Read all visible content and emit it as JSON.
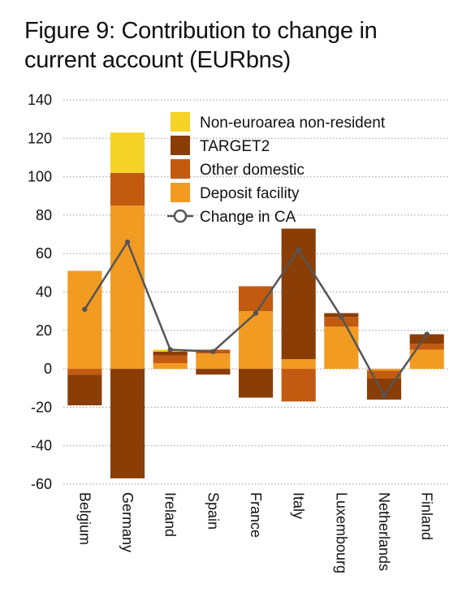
{
  "title": "Figure 9: Contribution to change in current account (EURbns)",
  "colors": {
    "non_euroarea": "#f5d327",
    "target2": "#8b3d06",
    "other_domestic": "#c25a10",
    "deposit_facility": "#f29b22",
    "change_ca": "#555555",
    "grid": "#9a9a9a"
  },
  "chart_data": {
    "type": "bar",
    "stacked": true,
    "title": "Figure 9: Contribution to change in current account (EURbns)",
    "categories": [
      "Belgium",
      "Germany",
      "Ireland",
      "Spain",
      "France",
      "Italy",
      "Luxembourg",
      "Netherlands",
      "Finland"
    ],
    "ylim": [
      -60,
      140
    ],
    "yticks": [
      140,
      120,
      100,
      80,
      60,
      40,
      20,
      0,
      -20,
      -40,
      -60
    ],
    "grid": "horizontal dotted",
    "legend_position": "top-right",
    "series": [
      {
        "name": "Deposit facility",
        "key": "deposit_facility",
        "values": [
          51,
          85,
          3,
          8,
          30,
          5,
          22,
          -1,
          10
        ]
      },
      {
        "name": "Other domestic",
        "key": "other_domestic",
        "values": [
          -3,
          17,
          4,
          2,
          13,
          -17,
          5,
          -4,
          3
        ]
      },
      {
        "name": "TARGET2",
        "key": "target2",
        "values": [
          -16,
          -57,
          2,
          -3,
          -15,
          68,
          2,
          -11,
          5
        ]
      },
      {
        "name": "Non-euroarea non-resident",
        "key": "non_euroarea",
        "values": [
          0,
          21,
          1,
          0,
          0,
          0,
          0,
          0,
          0
        ]
      }
    ],
    "line": {
      "name": "Change in CA",
      "key": "change_ca",
      "values": [
        31,
        66,
        10,
        9,
        29,
        62,
        27,
        -14,
        18
      ]
    }
  }
}
